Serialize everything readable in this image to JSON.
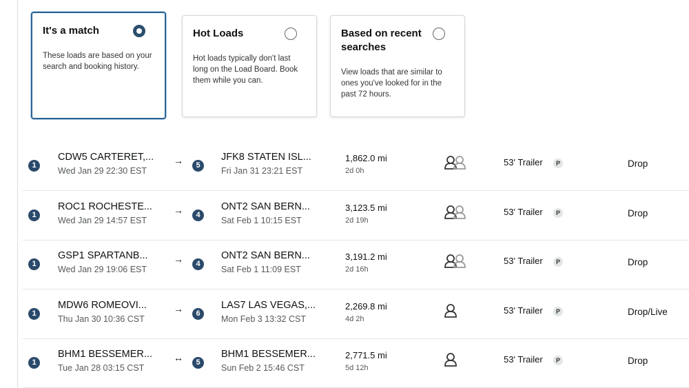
{
  "cards": [
    {
      "title": "It's a match",
      "description": "These loads are based on your search and booking history.",
      "selected": true
    },
    {
      "title": "Hot Loads",
      "description": "Hot loads typically don't last long on the Load Board. Book them while you can.",
      "selected": false
    },
    {
      "title": "Based on recent searches",
      "description": "View loads that are similar to ones you've looked for in the past 72 hours.",
      "selected": false
    }
  ],
  "loads": [
    {
      "origin_stops": 1,
      "origin": "CDW5 CARTERET,...",
      "origin_time": "Wed Jan 29 22:30 EST",
      "arrow": "→",
      "dest_stops": 5,
      "destination": "JFK8 STATEN ISL...",
      "dest_time": "Fri Jan 31 23:21 EST",
      "distance": "1,862.0 mi",
      "duration": "2d 0h",
      "drivers": 2,
      "equipment": "53' Trailer",
      "badge": "P",
      "load_type": "Drop"
    },
    {
      "origin_stops": 1,
      "origin": "ROC1 ROCHESTE...",
      "origin_time": "Wed Jan 29 14:57 EST",
      "arrow": "→",
      "dest_stops": 4,
      "destination": "ONT2 SAN BERN...",
      "dest_time": "Sat Feb 1 10:15 EST",
      "distance": "3,123.5 mi",
      "duration": "2d 19h",
      "drivers": 2,
      "equipment": "53' Trailer",
      "badge": "P",
      "load_type": "Drop"
    },
    {
      "origin_stops": 1,
      "origin": "GSP1 SPARTANB...",
      "origin_time": "Wed Jan 29 19:06 EST",
      "arrow": "→",
      "dest_stops": 4,
      "destination": "ONT2 SAN BERN...",
      "dest_time": "Sat Feb 1 11:09 EST",
      "distance": "3,191.2 mi",
      "duration": "2d 16h",
      "drivers": 2,
      "equipment": "53' Trailer",
      "badge": "P",
      "load_type": "Drop"
    },
    {
      "origin_stops": 1,
      "origin": "MDW6 ROMEOVI...",
      "origin_time": "Thu Jan 30 10:36 CST",
      "arrow": "→",
      "dest_stops": 6,
      "destination": "LAS7 LAS VEGAS,...",
      "dest_time": "Mon Feb 3 13:32 CST",
      "distance": "2,269.8 mi",
      "duration": "4d 2h",
      "drivers": 1,
      "equipment": "53' Trailer",
      "badge": "P",
      "load_type": "Drop/Live"
    },
    {
      "origin_stops": 1,
      "origin": "BHM1 BESSEMER...",
      "origin_time": "Tue Jan 28 03:15 CST",
      "arrow": "↔",
      "dest_stops": 5,
      "destination": "BHM1 BESSEMER...",
      "dest_time": "Sun Feb 2 15:46 CST",
      "distance": "2,771.5 mi",
      "duration": "5d 12h",
      "drivers": 1,
      "equipment": "53' Trailer",
      "badge": "P",
      "load_type": "Drop"
    }
  ]
}
